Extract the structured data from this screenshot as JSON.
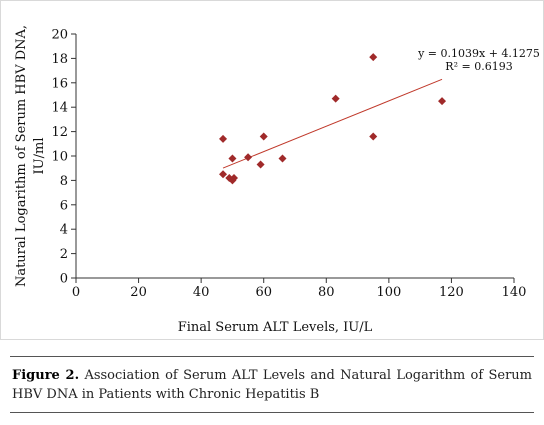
{
  "chart_data": {
    "type": "scatter",
    "title": "",
    "xlabel": "Final Serum ALT Levels, IU/L",
    "ylabel_line1": "Natural Logarithm of Serum HBV DNA,",
    "ylabel_line2": "IU/ml",
    "xlim": [
      0,
      140
    ],
    "ylim": [
      0,
      20
    ],
    "x_ticks": [
      0,
      20,
      40,
      60,
      80,
      100,
      120,
      140
    ],
    "y_ticks": [
      0,
      2,
      4,
      6,
      8,
      10,
      12,
      14,
      16,
      18,
      20
    ],
    "grid": false,
    "legend": "none",
    "marker_color": "#a02a2a",
    "trendline_color": "#c0392b",
    "points": [
      {
        "x": 47,
        "y": 11.4
      },
      {
        "x": 47,
        "y": 8.5
      },
      {
        "x": 49,
        "y": 8.2
      },
      {
        "x": 50,
        "y": 9.8
      },
      {
        "x": 50,
        "y": 8.0
      },
      {
        "x": 50.5,
        "y": 8.2
      },
      {
        "x": 55,
        "y": 9.9
      },
      {
        "x": 59,
        "y": 9.3
      },
      {
        "x": 60,
        "y": 11.6
      },
      {
        "x": 66,
        "y": 9.8
      },
      {
        "x": 83,
        "y": 14.7
      },
      {
        "x": 95,
        "y": 18.1
      },
      {
        "x": 95,
        "y": 11.6
      },
      {
        "x": 117,
        "y": 14.5
      }
    ],
    "trendline": {
      "slope": 0.1039,
      "intercept": 4.1275,
      "x_range": [
        47,
        117
      ],
      "equation": "y = 0.1039x + 4.1275",
      "r_squared": "R² = 0.6193"
    }
  },
  "caption": {
    "label": "Figure 2.",
    "text": " Association of Serum ALT Levels and Natural Logarithm of Serum HBV DNA in Patients with Chronic Hepatitis B"
  }
}
